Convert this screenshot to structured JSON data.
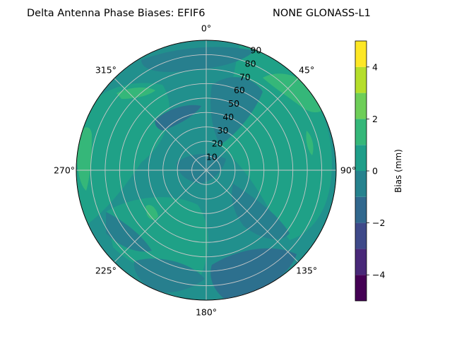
{
  "chart_data": {
    "type": "polar-contour",
    "title_left": "Delta Antenna Phase Biases: EFIF6",
    "title_right": "NONE GLONASS-L1",
    "angle_ticks": [
      "0°",
      "45°",
      "90°",
      "135°",
      "180°",
      "225°",
      "270°",
      "315°"
    ],
    "radial_ticks": [
      "10",
      "20",
      "30",
      "40",
      "50",
      "60",
      "70",
      "80",
      "90"
    ],
    "radial_values": [
      10,
      20,
      30,
      40,
      50,
      60,
      70,
      80,
      90
    ],
    "rlim": [
      0,
      90
    ],
    "grid": true,
    "colorbar": {
      "label": "Bias (mm)",
      "min": -5,
      "max": 5,
      "tick_values": [
        -4,
        -2,
        0,
        2,
        4
      ],
      "tick_labels": [
        "−4",
        "−2",
        "0",
        "2",
        "4"
      ],
      "levels": [
        -5,
        -4.5,
        -4,
        -3.5,
        -3,
        -2.5,
        -2,
        -1.5,
        -1,
        -0.5,
        0,
        0.5,
        1,
        1.5,
        2,
        2.5,
        3,
        3.5,
        4,
        4.5,
        5
      ],
      "colors": [
        "#440154",
        "#46327e",
        "#365c8d",
        "#277f8e",
        "#1fa187",
        "#4ac16d",
        "#a0da39",
        "#fde725"
      ]
    },
    "base_color": "#21908d",
    "regions": [
      {
        "level": "+0.5..+1.5",
        "color": "#1fa187",
        "az_range": [
          0,
          360
        ],
        "el_range": [
          0,
          90
        ]
      },
      {
        "level": "-0.5..+0.5",
        "color": "#27808e",
        "az_range": [
          10,
          70
        ],
        "el_range": [
          70,
          90
        ]
      },
      {
        "level": "-1.5..-0.5",
        "color": "#2d708e",
        "az_range": [
          300,
          350
        ],
        "el_range": [
          40,
          60
        ]
      },
      {
        "level": "-1.5..-0.5",
        "color": "#2d708e",
        "az_range": [
          110,
          180
        ],
        "el_range": [
          60,
          90
        ]
      },
      {
        "level": "+1.5..+2.5",
        "color": "#35b779",
        "az_range": [
          40,
          70
        ],
        "el_range": [
          70,
          90
        ]
      },
      {
        "level": "+1.5..+2.5",
        "color": "#35b779",
        "az_range": [
          260,
          290
        ],
        "el_range": [
          80,
          90
        ]
      }
    ]
  }
}
